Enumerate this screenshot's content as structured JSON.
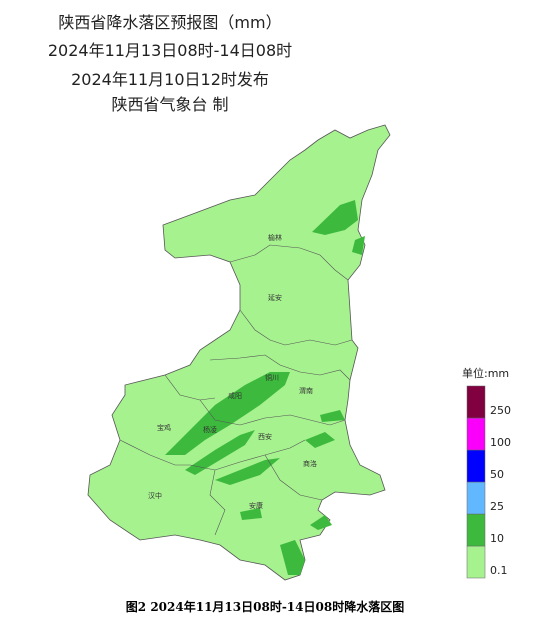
{
  "header": {
    "lines": [
      "陕西省降水落区预报图（mm）",
      "2024年11月13日08时-14日08时",
      "2024年11月10日12时发布",
      "陕西省气象台 制"
    ]
  },
  "cities": [
    "榆林",
    "延安",
    "铜川",
    "渭南",
    "咸阳",
    "宝鸡",
    "杨凌",
    "西安",
    "商洛",
    "汉中",
    "安康"
  ],
  "legend": {
    "title": "单位:mm",
    "items": [
      {
        "label": "0.1",
        "color": "#a6f28f"
      },
      {
        "label": "10",
        "color": "#3dba3d"
      },
      {
        "label": "25",
        "color": "#61b8ff"
      },
      {
        "label": "50",
        "color": "#0000fe"
      },
      {
        "label": "100",
        "color": "#fa00fa"
      },
      {
        "label": "250",
        "color": "#800040"
      }
    ]
  },
  "caption": "图2 2024年11月13日08时-14日08时降水落区图"
}
